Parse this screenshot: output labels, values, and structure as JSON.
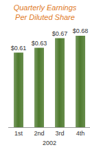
{
  "chart_data": {
    "type": "bar",
    "title": "Quarterly Earnings Per Diluted Share",
    "categories": [
      "1st",
      "2nd",
      "3rd",
      "4th"
    ],
    "values": [
      0.61,
      0.63,
      0.67,
      0.68
    ],
    "value_labels": [
      "$0.61",
      "$0.63",
      "$0.67",
      "$0.68"
    ],
    "data_labels": true,
    "color": "#4e7a2e",
    "xlabel": "2002",
    "ylim": [
      0.3,
      0.72
    ],
    "tick_labels": "x"
  }
}
